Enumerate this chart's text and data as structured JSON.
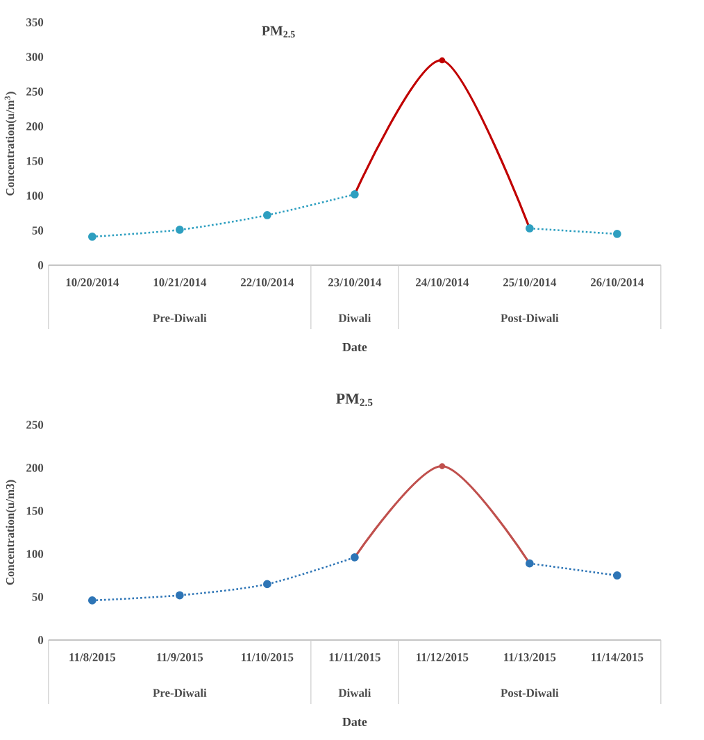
{
  "chart_data": [
    {
      "type": "line",
      "title": "PM$_{2.5}$",
      "xlabel": "Date",
      "ylabel": "Concentration(u/m$^{3}$)",
      "categories": [
        "10/20/2014",
        "10/21/2014",
        "22/10/2014",
        "23/10/2014",
        "24/10/2014",
        "25/10/2014",
        "26/10/2014"
      ],
      "series": [
        {
          "color": "#c00000",
          "line_style": "solid",
          "marker": "circle",
          "values": [
            null,
            null,
            null,
            102,
            295,
            53,
            null
          ]
        },
        {
          "color": "#2e9fc0",
          "line_style": "dotted",
          "marker": "circle",
          "values": [
            41,
            51,
            72,
            102,
            null,
            null,
            null
          ]
        },
        {
          "color": "#2e9fc0",
          "line_style": "dotted",
          "marker": "circle",
          "values": [
            null,
            null,
            null,
            null,
            null,
            53,
            45
          ]
        }
      ],
      "ylim": [
        0,
        350
      ],
      "yticks": [
        0,
        50,
        100,
        150,
        200,
        250,
        300,
        350
      ],
      "grid": false,
      "annotations": [
        "Pre-Diwali",
        "Diwali",
        "Post-Diwali"
      ]
    },
    {
      "type": "line",
      "title": "PM$_{2.5}$",
      "xlabel": "Date",
      "ylabel": "Concentration(u/m3)",
      "categories": [
        "11/8/2015",
        "11/9/2015",
        "11/10/2015",
        "11/11/2015",
        "11/12/2015",
        "11/13/2015",
        "11/14/2015"
      ],
      "series": [
        {
          "color": "#c0504d",
          "line_style": "solid",
          "marker": "circle",
          "values": [
            null,
            null,
            null,
            96,
            202,
            89,
            null
          ]
        },
        {
          "color": "#2e75b6",
          "line_style": "dotted",
          "marker": "circle",
          "values": [
            46,
            52,
            65,
            96,
            null,
            null,
            null
          ]
        },
        {
          "color": "#2e75b6",
          "line_style": "dotted",
          "marker": "circle",
          "values": [
            null,
            null,
            null,
            null,
            null,
            89,
            75
          ]
        }
      ],
      "ylim": [
        0,
        250
      ],
      "yticks": [
        0,
        50,
        100,
        150,
        200,
        250
      ],
      "grid": false,
      "annotations": [
        "Pre-Diwali",
        "Diwali",
        "Post-Diwali"
      ]
    }
  ]
}
